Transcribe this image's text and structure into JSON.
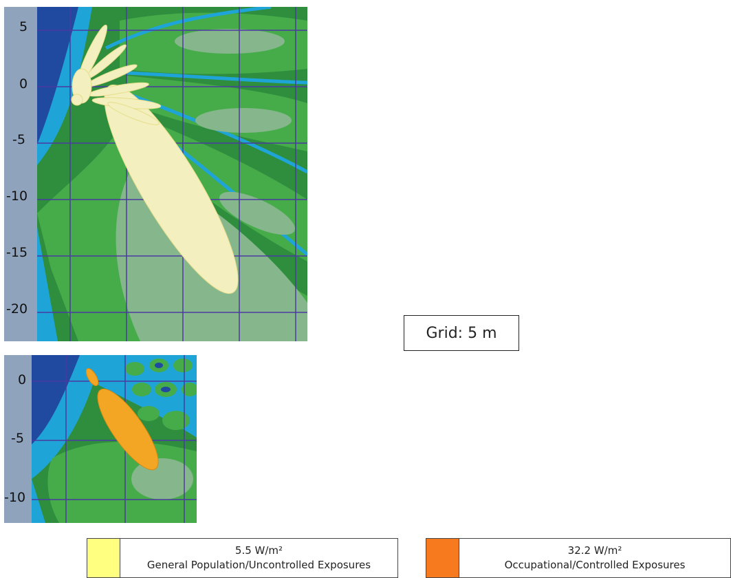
{
  "top_panel": {
    "y_ticks": [
      "5",
      "0",
      "-5",
      "-10",
      "-15",
      "-20"
    ]
  },
  "bottom_panel": {
    "y_ticks": [
      "0",
      "-5",
      "-10"
    ]
  },
  "grid_label": "Grid: 5 m",
  "legend": [
    {
      "value": "5.5 W/m²",
      "label": "General Population/Uncontrolled Exposures",
      "color": "#ffff80"
    },
    {
      "value": "32.2 W/m²",
      "label": "Occupational/Controlled Exposures",
      "color": "#f87a1f"
    }
  ],
  "colors": {
    "background_deep": "#1f4aa0",
    "cyan_band": "#1fa4d8",
    "dark_green": "#2f8e3e",
    "green": "#46ac4a",
    "light_green": "#86b78c",
    "general_beam": "#f3efbe",
    "occupational_beam": "#f2a624",
    "axis_strip": "#8fa3bd",
    "grid_line": "#4a3aa0"
  }
}
